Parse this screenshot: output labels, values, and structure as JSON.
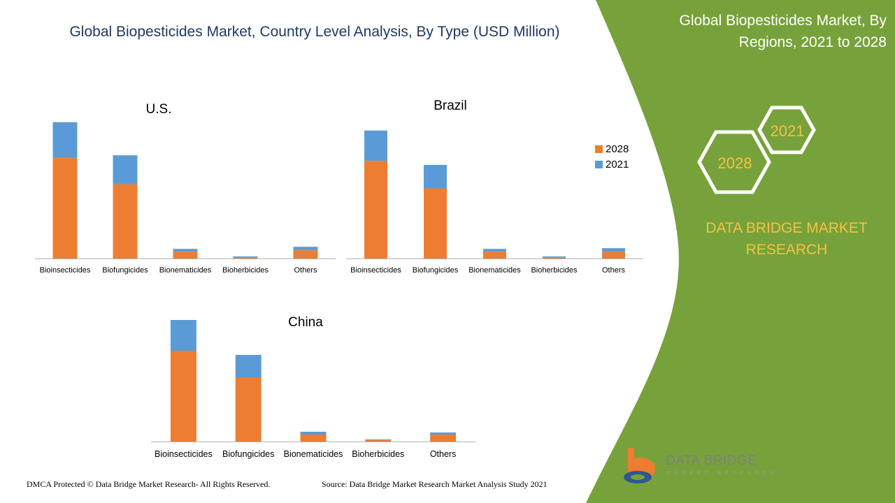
{
  "page": {
    "title": "Global Biopesticides Market, Country Level Analysis, By Type (USD Million)",
    "side_title": "Global Biopesticides Market, By Regions, 2021 to 2028",
    "hex_2021": "2021",
    "hex_2028": "2028",
    "brand_text": "DATA BRIDGE MARKET RESEARCH",
    "footer_left": "DMCA Protected © Data Bridge Market Research- All Rights Reserved.",
    "footer_right": "Source: Data Bridge Market Research Market Analysis Study 2021",
    "logo_text": "DATA BRIDGE",
    "logo_subtext": "MARKET RESEARCH"
  },
  "colors": {
    "series_2028": "#ed7d31",
    "series_2021": "#5b9bd5",
    "green_panel": "#77a23b",
    "accent_yellow": "#f5c242"
  },
  "chart_data": [
    {
      "type": "bar",
      "stacked": true,
      "title": "U.S.",
      "categories": [
        "Bioinsecticides",
        "Biofungicides",
        "Bionematicides",
        "Bioherbicides",
        "Others"
      ],
      "series": [
        {
          "name": "2028",
          "values": [
            73,
            54,
            5,
            1,
            6
          ]
        },
        {
          "name": "2021",
          "values": [
            26,
            21,
            2,
            0.5,
            2.5
          ]
        }
      ]
    },
    {
      "type": "bar",
      "stacked": true,
      "title": "Brazil",
      "categories": [
        "Bioinsecticides",
        "Biofungicides",
        "Bionematicides",
        "Bioherbicides",
        "Others"
      ],
      "legend": {
        "position": "right",
        "entries": [
          "2028",
          "2021"
        ]
      },
      "series": [
        {
          "name": "2028",
          "values": [
            71,
            51,
            5,
            1,
            5
          ]
        },
        {
          "name": "2021",
          "values": [
            22,
            17,
            2,
            0.5,
            2.5
          ]
        }
      ]
    },
    {
      "type": "bar",
      "stacked": true,
      "title": "China",
      "categories": [
        "Bioinsecticides",
        "Biofungicides",
        "Bionematicides",
        "Bioherbicides",
        "Others"
      ],
      "series": [
        {
          "name": "2028",
          "values": [
            65,
            46,
            5,
            1,
            5
          ]
        },
        {
          "name": "2021",
          "values": [
            22,
            16,
            2,
            0.5,
            1.5
          ]
        }
      ]
    }
  ]
}
